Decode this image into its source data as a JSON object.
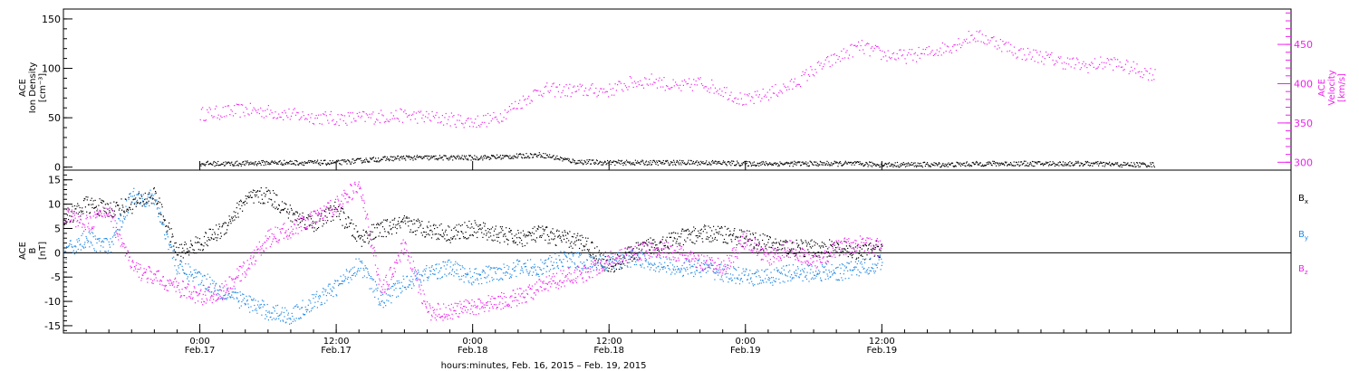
{
  "chart_data": [
    {
      "type": "scatter",
      "panel": "top",
      "ylabel_left": [
        "ACE",
        "Ion Density",
        "[cm⁻³]"
      ],
      "ylabel_right": [
        "ACE",
        "Velocity",
        "[km/s]"
      ],
      "ylim_left": [
        -3,
        160
      ],
      "ylim_right": [
        290,
        495
      ],
      "yticks_left": [
        "0",
        "50",
        "100",
        "150"
      ],
      "yticks_right": [
        "300",
        "350",
        "400",
        "450"
      ],
      "colors": {
        "density": "#000000",
        "velocity": "#ee22ee"
      },
      "series": [
        {
          "name": "Ion Density",
          "axis": "left",
          "x": [
            0,
            3,
            6,
            9,
            12,
            15,
            18,
            21,
            24,
            27,
            30,
            33,
            36,
            39,
            42,
            45,
            48,
            51,
            54,
            57,
            60,
            63,
            66,
            69,
            72,
            75,
            78,
            81,
            84
          ],
          "y": [
            4,
            4,
            5,
            5,
            5,
            8,
            10,
            10,
            10,
            11,
            13,
            6,
            5,
            5,
            5,
            5,
            4,
            4,
            4,
            4,
            3,
            3,
            3,
            4,
            4,
            4,
            4,
            3,
            3
          ]
        },
        {
          "name": "Velocity",
          "axis": "right",
          "x": [
            0,
            2,
            4,
            6,
            8,
            10,
            12,
            14,
            16,
            18,
            20,
            22,
            24,
            26,
            28,
            30,
            32,
            34,
            36,
            38,
            40,
            42,
            44,
            46,
            48,
            50,
            52,
            54,
            56,
            58,
            60,
            62,
            64,
            66,
            68,
            70,
            72,
            74,
            76,
            78,
            80,
            82,
            84
          ],
          "y": [
            362,
            364,
            367,
            365,
            361,
            358,
            356,
            357,
            359,
            360,
            358,
            355,
            352,
            356,
            375,
            393,
            392,
            392,
            392,
            402,
            405,
            395,
            402,
            392,
            378,
            388,
            398,
            418,
            433,
            448,
            438,
            435,
            440,
            448,
            462,
            454,
            440,
            435,
            428,
            423,
            428,
            420,
            412
          ]
        }
      ]
    },
    {
      "type": "scatter",
      "panel": "bottom",
      "ylabel": [
        "ACE",
        "B",
        "[nT]"
      ],
      "ylim": [
        -16.5,
        17
      ],
      "yticks": [
        "-15",
        "-10",
        "-5",
        "0",
        "5",
        "10",
        "15"
      ],
      "xlabel": "hours:minutes, Feb. 16, 2015 – Feb. 19, 2015",
      "x_ticks": [
        {
          "time": "0:00",
          "date": "Feb.17"
        },
        {
          "time": "12:00",
          "date": "Feb.17"
        },
        {
          "time": "0:00",
          "date": "Feb.18"
        },
        {
          "time": "12:00",
          "date": "Feb.18"
        },
        {
          "time": "0:00",
          "date": "Feb.19"
        },
        {
          "time": "12:00",
          "date": "Feb.19"
        }
      ],
      "xlim_hours": [
        -12,
        96
      ],
      "colors": {
        "Bx": "#000000",
        "By": "#1e88e5",
        "Bz": "#ee22ee"
      },
      "series": [
        {
          "name": "Bx",
          "x": [
            -12,
            -10,
            -8,
            -6,
            -4,
            -2,
            0,
            2,
            4,
            6,
            8,
            10,
            12,
            14,
            16,
            18,
            20,
            22,
            24,
            26,
            28,
            30,
            32,
            34,
            36,
            38,
            40,
            42,
            44,
            46,
            48,
            50,
            52,
            54,
            56,
            58,
            60
          ],
          "y": [
            7,
            10,
            9,
            10,
            12,
            0,
            2,
            5,
            11,
            12,
            8,
            6,
            9,
            3,
            5,
            6,
            5,
            4,
            5,
            4,
            3,
            4,
            3,
            2,
            -3,
            0,
            2,
            3,
            4,
            4,
            3,
            2,
            1,
            1,
            1,
            0,
            1
          ]
        },
        {
          "name": "By",
          "x": [
            -12,
            -10,
            -8,
            -6,
            -4,
            -2,
            0,
            2,
            4,
            6,
            8,
            10,
            12,
            14,
            16,
            18,
            20,
            22,
            24,
            26,
            28,
            30,
            32,
            34,
            36,
            38,
            40,
            42,
            44,
            46,
            48,
            50,
            52,
            54,
            56,
            58,
            60
          ],
          "y": [
            0,
            3,
            1,
            12,
            11,
            -3,
            -5,
            -8,
            -10,
            -12,
            -13,
            -10,
            -7,
            -2,
            -10,
            -6,
            -4,
            -3,
            -5,
            -4,
            -3,
            -3,
            -1,
            -2,
            -2,
            -1,
            -2,
            -3,
            -3,
            -4,
            -5,
            -5,
            -4,
            -4,
            -4,
            -3,
            -2
          ]
        },
        {
          "name": "Bz",
          "x": [
            -12,
            -10,
            -8,
            -6,
            -4,
            -2,
            0,
            2,
            4,
            6,
            8,
            10,
            12,
            14,
            16,
            18,
            20,
            22,
            24,
            26,
            28,
            30,
            32,
            34,
            36,
            38,
            40,
            42,
            44,
            46,
            48,
            50,
            52,
            54,
            56,
            58,
            60
          ],
          "y": [
            8,
            6,
            9,
            -3,
            -5,
            -7,
            -9,
            -8,
            -3,
            3,
            5,
            7,
            10,
            14,
            -8,
            2,
            -12,
            -12,
            -11,
            -10,
            -9,
            -7,
            -5,
            -4,
            -1,
            0,
            1,
            0,
            -2,
            -3,
            3,
            -1,
            1,
            -2,
            1,
            2,
            1
          ]
        }
      ]
    }
  ],
  "legend": [
    {
      "label": "B",
      "sub": "x",
      "color": "#000000"
    },
    {
      "label": "B",
      "sub": "y",
      "color": "#1e88e5"
    },
    {
      "label": "B",
      "sub": "z",
      "color": "#ee22ee"
    }
  ]
}
